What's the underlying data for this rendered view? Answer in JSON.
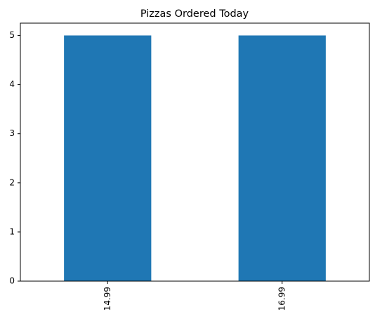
{
  "chart_data": {
    "type": "bar",
    "title": "Pizzas Ordered Today",
    "categories": [
      "14.99",
      "16.99"
    ],
    "values": [
      5,
      5
    ],
    "color": "#1f77b4",
    "ylim": [
      0,
      5.25
    ],
    "yticks": [
      0,
      1,
      2,
      3,
      4,
      5
    ]
  }
}
